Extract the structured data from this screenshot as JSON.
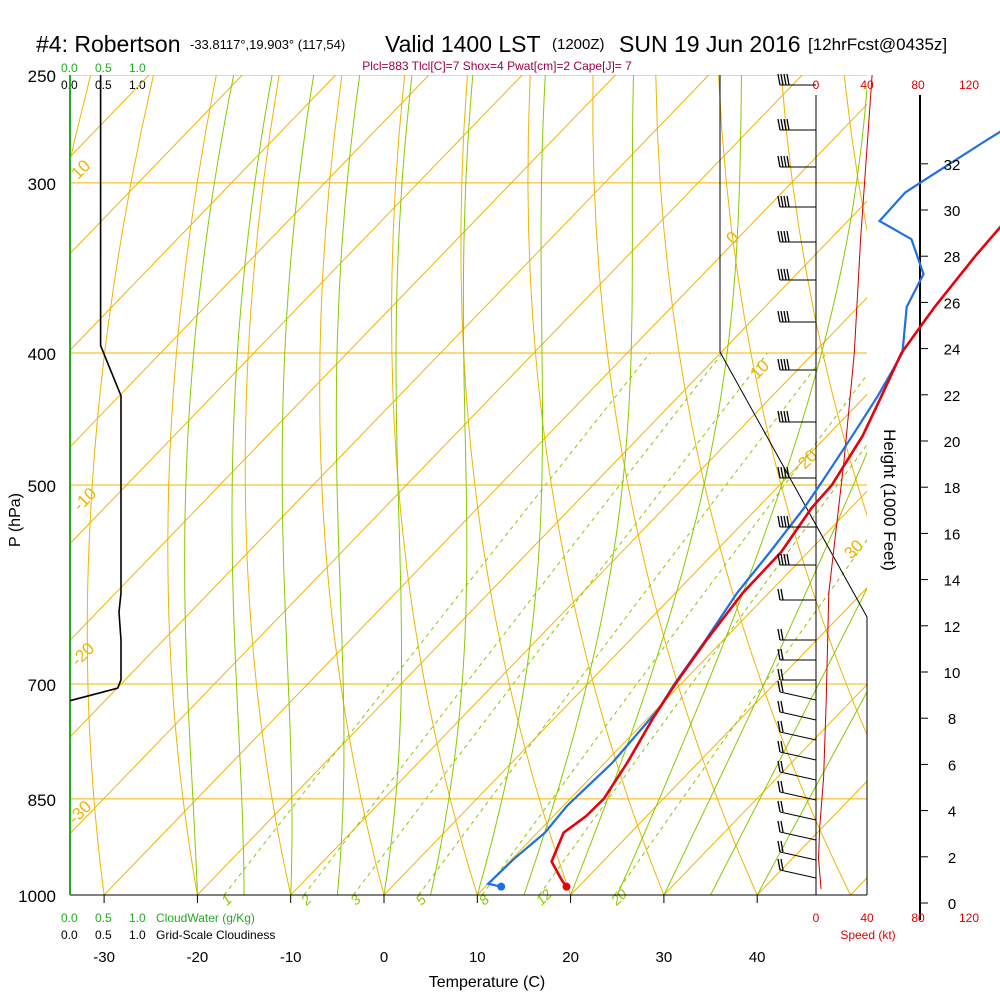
{
  "header": {
    "station": "#4: Robertson",
    "coords": "-33.8117°,19.903° (117,54)",
    "valid": "Valid 1400 LST",
    "utc": "(1200Z)",
    "date": "SUN 19 Jun 2016",
    "forecast": "[12hrFcst@0435z]",
    "indices": "Plcl=883 Tlcl[C]=7 Shox=4 Pwat[cm]=2 Cape[J]= 7"
  },
  "colors": {
    "temperature": "#e8000b",
    "dewpoint": "#1e6fe6",
    "isotherm": "#f0b400",
    "mixing_ratio": "#8ac800",
    "cloudwater": "#22aa22",
    "wind_speed": "#cc0000"
  },
  "top_scales": {
    "cloudwater_ticks": [
      "0.0",
      "0.5",
      "1.0"
    ],
    "cloudiness_ticks": [
      "0.0",
      "0.5",
      "1.0"
    ],
    "speed_ticks": [
      "0",
      "40",
      "80",
      "120"
    ]
  },
  "bottom_scales": {
    "cloudwater_ticks": [
      "0.0",
      "0.5",
      "1.0"
    ],
    "cloudwater_label": "CloudWater (g/Kg)",
    "cloudiness_ticks": [
      "0.0",
      "0.5",
      "1.0"
    ],
    "cloudiness_label": "Grid-Scale Cloudiness",
    "speed_ticks": [
      "0",
      "40",
      "80",
      "120"
    ],
    "speed_label": "Speed (kt)"
  },
  "chart_data": {
    "type": "line",
    "xlabel": "Temperature (C)",
    "ylabel": "P (hPa)",
    "y2label": "Height (1000 Feet)",
    "x_ticks": [
      -30,
      -20,
      -10,
      0,
      10,
      20,
      30,
      40
    ],
    "pressure_ticks": [
      250,
      300,
      400,
      500,
      700,
      850,
      1000
    ],
    "height_ticks": [
      0,
      2,
      4,
      6,
      8,
      10,
      12,
      14,
      16,
      18,
      20,
      22,
      24,
      26,
      28,
      30,
      32
    ],
    "mixing_ratio_labels": [
      "1",
      "2",
      "3",
      "5",
      "8",
      "12",
      "20"
    ],
    "isotherm_labels": [
      "0",
      "10",
      "20",
      "30",
      "-10",
      "-20",
      "-30",
      "10"
    ],
    "series": [
      {
        "name": "Temperature",
        "points": [
          [
            18.7,
            986
          ],
          [
            17.5,
            975
          ],
          [
            14.5,
            945
          ],
          [
            12.8,
            900
          ],
          [
            13.5,
            875
          ],
          [
            13.6,
            850
          ],
          [
            12.4,
            800
          ],
          [
            10.5,
            740
          ],
          [
            9.4,
            700
          ],
          [
            8.2,
            650
          ],
          [
            7.2,
            600
          ],
          [
            7.1,
            560
          ],
          [
            5.8,
            520
          ],
          [
            5.6,
            500
          ],
          [
            3.8,
            460
          ],
          [
            1.7,
            430
          ],
          [
            -0.6,
            400
          ],
          [
            -1.8,
            370
          ],
          [
            -2.7,
            340
          ],
          [
            -3.1,
            320
          ],
          [
            -3.3,
            300
          ],
          [
            -3.5,
            280
          ],
          [
            -3.9,
            258
          ]
        ]
      },
      {
        "name": "Dewpoint",
        "points": [
          [
            11.7,
            986
          ],
          [
            10.0,
            981
          ],
          [
            10.2,
            940
          ],
          [
            10.8,
            900
          ],
          [
            10.4,
            860
          ],
          [
            10.8,
            800
          ],
          [
            10.2,
            730
          ],
          [
            9.3,
            700
          ],
          [
            8.1,
            650
          ],
          [
            6.6,
            600
          ],
          [
            5.9,
            560
          ],
          [
            5.0,
            520
          ],
          [
            4.3,
            500
          ],
          [
            2.7,
            460
          ],
          [
            1.3,
            430
          ],
          [
            -0.5,
            400
          ],
          [
            -4.8,
            370
          ],
          [
            -6.4,
            350
          ],
          [
            -11.3,
            330
          ],
          [
            -16.6,
            320
          ],
          [
            -16.8,
            305
          ],
          [
            -16.2,
            300
          ],
          [
            -13.6,
            280
          ],
          [
            -10.2,
            258
          ]
        ]
      },
      {
        "name": "Cloudiness",
        "points": [
          [
            0.45,
            250
          ],
          [
            0.45,
            395
          ],
          [
            0.75,
            430
          ],
          [
            0.75,
            600
          ],
          [
            0.72,
            620
          ],
          [
            0.75,
            650
          ],
          [
            0.75,
            695
          ],
          [
            0.7,
            705
          ],
          [
            0.0,
            720
          ]
        ]
      },
      {
        "name": "Wind Speed",
        "points": [
          [
            44,
            250
          ],
          [
            35,
            330
          ],
          [
            30,
            400
          ],
          [
            22,
            480
          ],
          [
            10,
            600
          ],
          [
            8,
            720
          ],
          [
            6,
            820
          ],
          [
            3,
            890
          ],
          [
            2,
            940
          ],
          [
            4,
            990
          ]
        ]
      }
    ]
  }
}
